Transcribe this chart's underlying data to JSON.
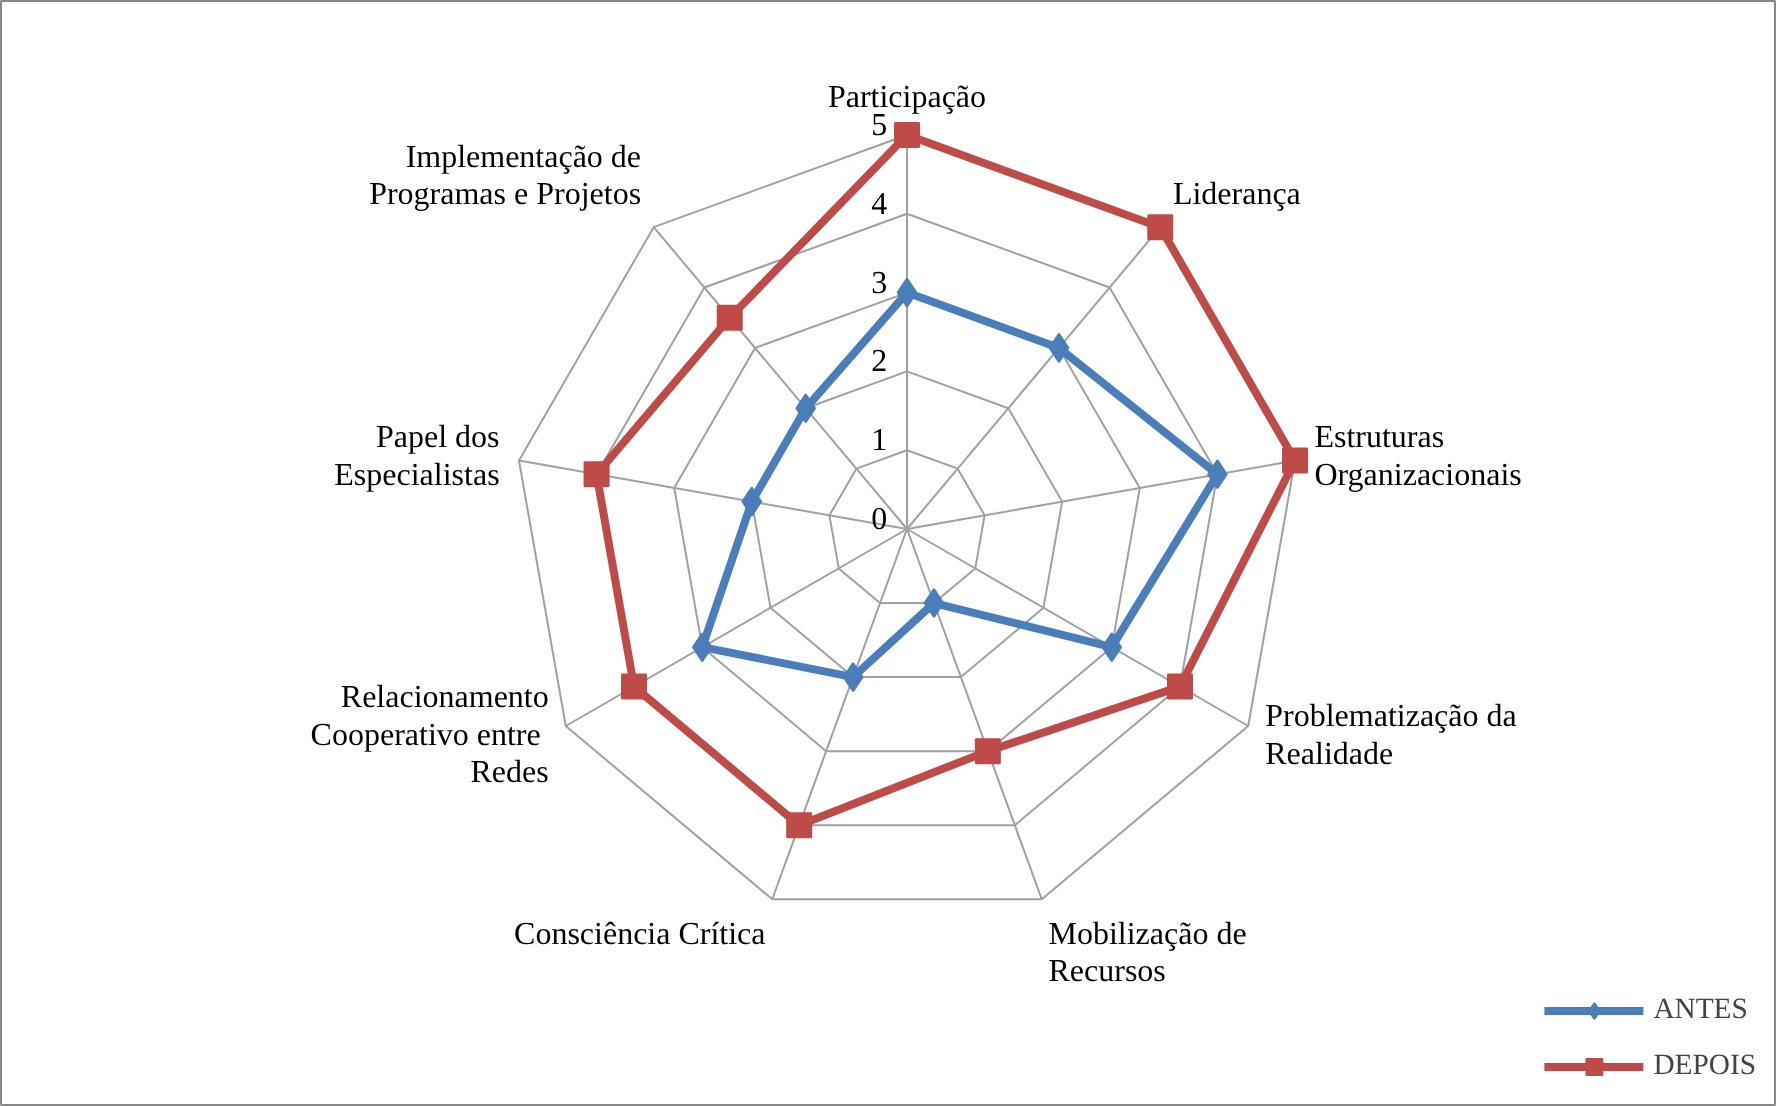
{
  "chart_data": {
    "type": "radar",
    "categories": [
      "Participação",
      "Liderança",
      "Estruturas\nOrganizacionais",
      "Problematização da\nRealidade",
      "Mobilização de\nRecursos",
      "Consciência Crítica",
      "Relacionamento\nCooperativo  entre\nRedes",
      "Papel dos\nEspecialistas",
      "Implementação de\nProgramas e Projetos"
    ],
    "series": [
      {
        "name": "ANTES",
        "color": "#4a7ebb",
        "marker": "diamond",
        "values": [
          3,
          3,
          4,
          3,
          1,
          2,
          3,
          2,
          2
        ]
      },
      {
        "name": "DEPOIS",
        "color": "#be4b48",
        "marker": "square",
        "values": [
          5,
          5,
          5,
          4,
          3,
          4,
          4,
          4,
          3.5
        ]
      }
    ],
    "ylim": [
      0,
      5
    ],
    "yticks": [
      0,
      1,
      2,
      3,
      4,
      5
    ],
    "grid": true,
    "legend": "bottom right"
  }
}
